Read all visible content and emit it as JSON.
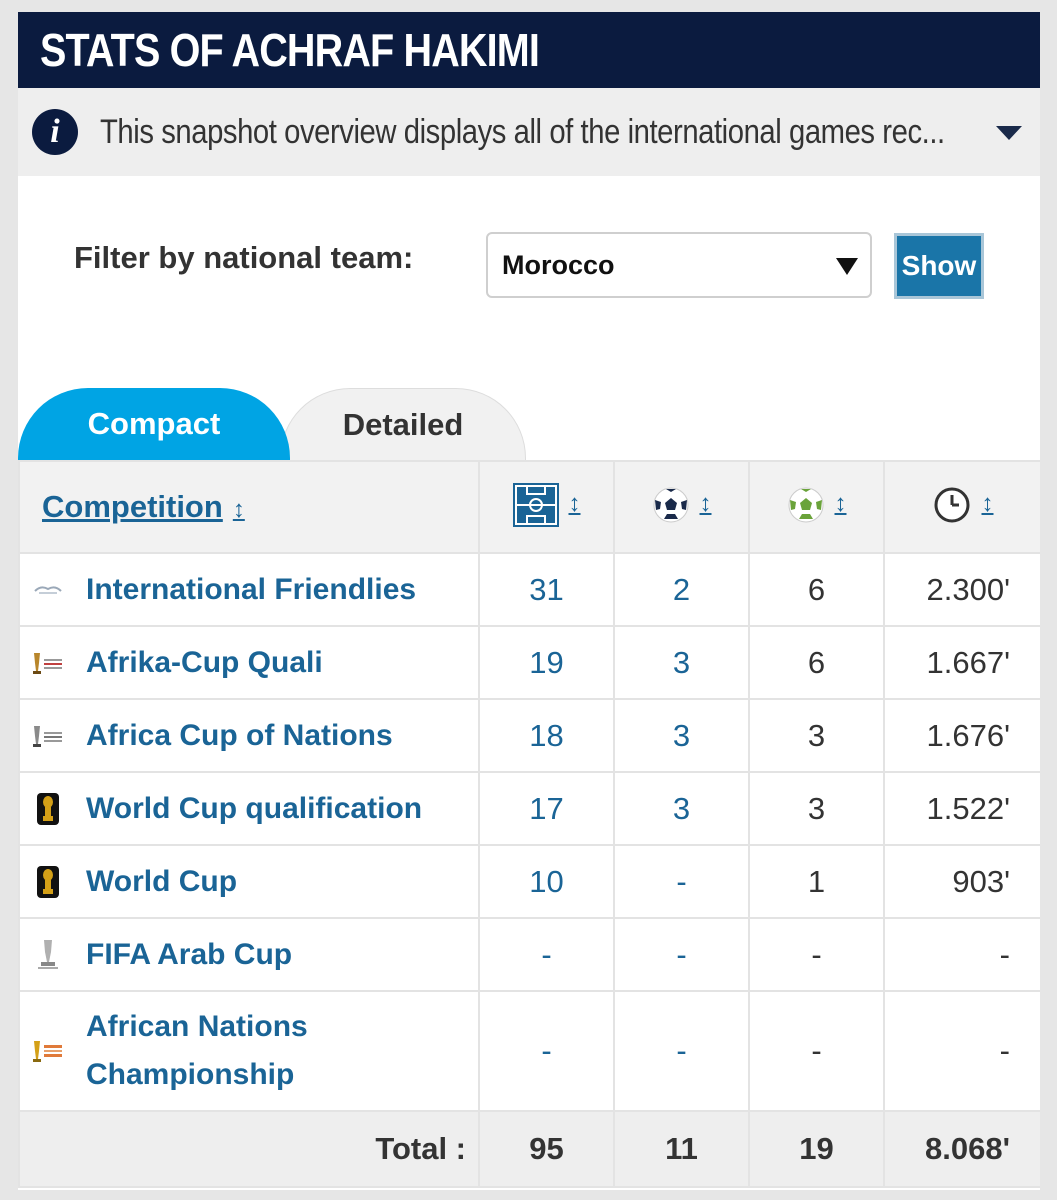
{
  "header": {
    "title": "STATS OF ACHRAF HAKIMI"
  },
  "info": {
    "text": "This snapshot overview displays all of the international games rec..."
  },
  "filter": {
    "label": "Filter by national team:",
    "selected": "Morocco",
    "button": "Show"
  },
  "tabs": [
    {
      "label": "Compact",
      "active": true
    },
    {
      "label": "Detailed",
      "active": false
    }
  ],
  "table": {
    "header": {
      "competition": "Competition",
      "sort_symbol": "↕"
    },
    "rows": [
      {
        "competition": "International Friendlies",
        "icon": "friendlies-icon",
        "apps": "31",
        "goals": "2",
        "assists": "6",
        "minutes": "2.300'"
      },
      {
        "competition": "Afrika-Cup Quali",
        "icon": "afcon-trophy-icon",
        "apps": "19",
        "goals": "3",
        "assists": "6",
        "minutes": "1.667'"
      },
      {
        "competition": "Africa Cup of Nations",
        "icon": "afcon-trophy-icon",
        "apps": "18",
        "goals": "3",
        "assists": "3",
        "minutes": "1.676'"
      },
      {
        "competition": "World Cup qualification",
        "icon": "world-cup-trophy-icon",
        "apps": "17",
        "goals": "3",
        "assists": "3",
        "minutes": "1.522'"
      },
      {
        "competition": "World Cup",
        "icon": "world-cup-trophy-icon",
        "apps": "10",
        "goals": "-",
        "assists": "1",
        "minutes": "903'"
      },
      {
        "competition": "FIFA Arab Cup",
        "icon": "arab-cup-trophy-icon",
        "apps": "-",
        "goals": "-",
        "assists": "-",
        "minutes": "-"
      },
      {
        "competition": "African Nations Championship",
        "icon": "chan-trophy-icon",
        "apps": "-",
        "goals": "-",
        "assists": "-",
        "minutes": "-"
      }
    ],
    "total": {
      "label": "Total :",
      "apps": "95",
      "goals": "11",
      "assists": "19",
      "minutes": "8.068'"
    }
  },
  "colors": {
    "header_bg": "#0b1b3f",
    "tab_active": "#00a4e4",
    "link": "#1a6496",
    "button": "#1a75a8"
  }
}
